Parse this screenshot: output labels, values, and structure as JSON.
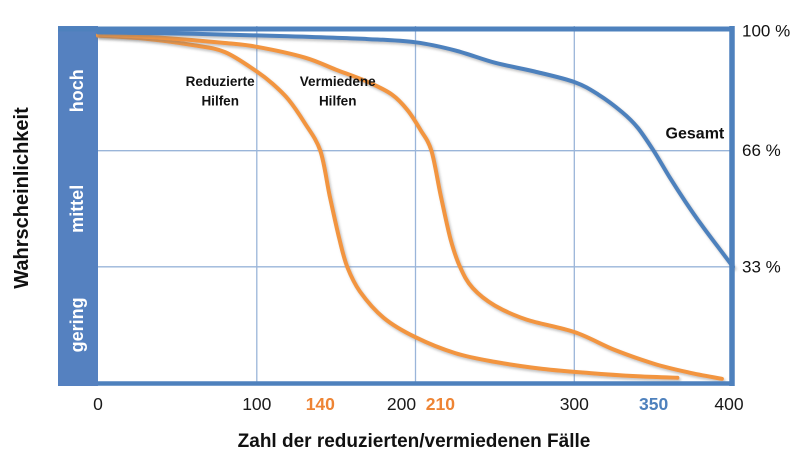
{
  "chart_data": {
    "type": "line",
    "title": "",
    "xlabel": "Zahl der reduzierten/vermiedenen Fälle",
    "ylabel": "Wahrscheinlichkeit",
    "xlim": [
      0,
      400
    ],
    "ylim_percent": [
      0,
      100
    ],
    "grid": true,
    "legend_position": "inline-annotations",
    "colors": {
      "background": "#ffffff",
      "frame_blue": "#4E81BD",
      "band_blue": "#5581C0",
      "gridline_blue": "#9AB5D9",
      "orange_curve": "#F2953F",
      "orange_label": "#EE8434",
      "blue_curve": "#4E81BD",
      "text_black": "#111111",
      "band_text_white": "#FFFFFF"
    },
    "band_labels": [
      "hoch",
      "mittel",
      "gering"
    ],
    "y_right_labels": [
      {
        "label": "100 %",
        "percent": 100
      },
      {
        "label": "66 %",
        "percent": 66
      },
      {
        "label": "33 %",
        "percent": 33
      }
    ],
    "x_ticks": [
      {
        "label": "0",
        "value": 0,
        "color": "#1a1a1a",
        "bold": false,
        "dx": 0
      },
      {
        "label": "100",
        "value": 100,
        "color": "#1a1a1a",
        "bold": false,
        "dx": 0
      },
      {
        "label": "140",
        "value": 140,
        "color": "#EE8434",
        "bold": true,
        "dx": 0
      },
      {
        "label": "200",
        "value": 200,
        "color": "#1a1a1a",
        "bold": false,
        "dx": -14
      },
      {
        "label": "210",
        "value": 210,
        "color": "#EE8434",
        "bold": true,
        "dx": 9
      },
      {
        "label": "300",
        "value": 300,
        "color": "#1a1a1a",
        "bold": false,
        "dx": 0
      },
      {
        "label": "350",
        "value": 350,
        "color": "#4E81BD",
        "bold": true,
        "dx": 0
      },
      {
        "label": "400",
        "value": 400,
        "color": "#1a1a1a",
        "bold": false,
        "dx": -4
      }
    ],
    "gridlines": {
      "x_values": [
        100,
        200,
        300
      ],
      "y_percents": [
        66,
        33
      ]
    },
    "series": [
      {
        "name": "Reduzierte Hilfen",
        "color": "#F2953F",
        "points": [
          [
            0,
            98.7
          ],
          [
            30,
            97.8
          ],
          [
            60,
            96.0
          ],
          [
            80,
            94.0
          ],
          [
            100,
            88.5
          ],
          [
            110,
            85.0
          ],
          [
            120,
            80.5
          ],
          [
            130,
            74.0
          ],
          [
            140,
            66.0
          ],
          [
            146,
            53.0
          ],
          [
            152,
            41.0
          ],
          [
            157,
            33.0
          ],
          [
            165,
            26.0
          ],
          [
            180,
            18.5
          ],
          [
            200,
            13.0
          ],
          [
            225,
            8.5
          ],
          [
            250,
            6.0
          ],
          [
            280,
            4.0
          ],
          [
            310,
            2.8
          ],
          [
            340,
            1.9
          ],
          [
            365,
            1.5
          ]
        ]
      },
      {
        "name": "Vermiedene Hilfen",
        "color": "#F2953F",
        "points": [
          [
            0,
            99.0
          ],
          [
            40,
            98.1
          ],
          [
            80,
            96.6
          ],
          [
            100,
            95.5
          ],
          [
            130,
            92.5
          ],
          [
            150,
            89.0
          ],
          [
            170,
            85.5
          ],
          [
            185,
            82.0
          ],
          [
            195,
            77.5
          ],
          [
            203,
            72.0
          ],
          [
            210,
            66.0
          ],
          [
            216,
            53.0
          ],
          [
            222,
            41.0
          ],
          [
            228,
            33.0
          ],
          [
            236,
            27.0
          ],
          [
            250,
            22.0
          ],
          [
            270,
            18.0
          ],
          [
            300,
            14.5
          ],
          [
            325,
            9.5
          ],
          [
            350,
            5.5
          ],
          [
            372,
            3.0
          ],
          [
            393,
            1.2
          ]
        ]
      },
      {
        "name": "Gesamt",
        "color": "#4E81BD",
        "points": [
          [
            0,
            99.6
          ],
          [
            60,
            99.2
          ],
          [
            120,
            98.5
          ],
          [
            170,
            97.7
          ],
          [
            200,
            96.8
          ],
          [
            225,
            94.5
          ],
          [
            250,
            91.0
          ],
          [
            275,
            88.5
          ],
          [
            300,
            85.5
          ],
          [
            315,
            82.0
          ],
          [
            330,
            77.0
          ],
          [
            340,
            72.5
          ],
          [
            350,
            66.0
          ],
          [
            360,
            58.5
          ],
          [
            370,
            51.5
          ],
          [
            380,
            45.0
          ],
          [
            390,
            39.0
          ],
          [
            400,
            33.0
          ]
        ]
      }
    ],
    "key_points": [
      {
        "series": "Reduzierte Hilfen",
        "x": 140,
        "percent": 66,
        "tick_label": "140"
      },
      {
        "series": "Vermiedene Hilfen",
        "x": 210,
        "percent": 66,
        "tick_label": "210"
      },
      {
        "series": "Gesamt",
        "x": 350,
        "percent": 66,
        "tick_label": "350"
      }
    ],
    "annotations": [
      {
        "lines": [
          "Reduzierte",
          "Hilfen"
        ],
        "x": 77,
        "percent": 83,
        "font_px": 13.5,
        "bold": true
      },
      {
        "lines": [
          "Vermiedene",
          "Hilfen"
        ],
        "x": 151,
        "percent": 83,
        "font_px": 13.5,
        "bold": true
      },
      {
        "lines": [
          "Gesamt"
        ],
        "x": 376,
        "percent": 71,
        "font_px": 16,
        "bold": true
      }
    ]
  }
}
